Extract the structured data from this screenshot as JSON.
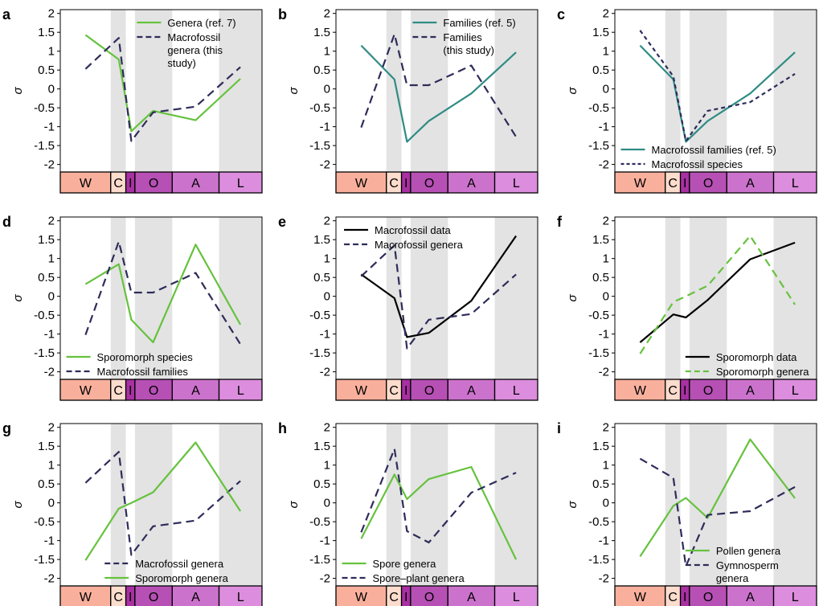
{
  "figure": {
    "axis_symbol": "σ",
    "colors": {
      "green": "#66c23e",
      "navy": "#2e2c5a",
      "teal": "#2f8c84",
      "black": "#000000",
      "shade": "#e3e3e3",
      "period_W": "#f8b09d",
      "period_C": "#fcdccd",
      "period_I": "#a830a2",
      "period_O": "#b650b4",
      "period_A": "#cb73cc",
      "period_L": "#dc8ddd"
    },
    "period_labels": [
      "W",
      "C",
      "I",
      "O",
      "A",
      "L"
    ]
  },
  "chart_data": [
    {
      "panel": "a",
      "type": "line",
      "ylim": [
        -2.2,
        2.1
      ],
      "yticks": [
        2.0,
        1.5,
        1.0,
        0.5,
        0.0,
        -0.5,
        -1.0,
        -1.5,
        -2.0
      ],
      "ylabel": "σ",
      "x_stages": [
        "W",
        "C",
        "I",
        "O",
        "A",
        "L"
      ],
      "legend_position": "top-right",
      "series": [
        {
          "name": "Genera (ref. 7)",
          "color": "#66c23e",
          "dash": "solid",
          "width": 2.2,
          "values": [
            1.43,
            0.78,
            -1.12,
            -0.58,
            -0.83,
            0.27
          ]
        },
        {
          "name": "Macrofossil genera (this study)",
          "legend_lines": [
            "Macrofossil",
            "genera (this",
            "study)"
          ],
          "color": "#2e2c5a",
          "dash": "long",
          "width": 2.2,
          "values": [
            0.53,
            1.35,
            -1.38,
            -0.62,
            -0.47,
            0.58
          ]
        }
      ]
    },
    {
      "panel": "b",
      "type": "line",
      "ylim": [
        -2.2,
        2.1
      ],
      "yticks": [
        2.0,
        1.5,
        1.0,
        0.5,
        0.0,
        -0.5,
        -1.0,
        -1.5,
        -2.0
      ],
      "ylabel": "σ",
      "x_stages": [
        "W",
        "C",
        "I",
        "O",
        "A",
        "L"
      ],
      "legend_position": "top-right",
      "series": [
        {
          "name": "Families (ref. 5)",
          "color": "#2f8c84",
          "dash": "solid",
          "width": 2.2,
          "values": [
            1.15,
            0.25,
            -1.4,
            -0.85,
            -0.12,
            0.97
          ]
        },
        {
          "name": "Families (this study)",
          "legend_lines": [
            "Families",
            "(this study)"
          ],
          "color": "#2e2c5a",
          "dash": "long",
          "width": 2.2,
          "values": [
            -1.02,
            1.45,
            0.1,
            0.1,
            0.62,
            -1.27
          ]
        }
      ]
    },
    {
      "panel": "c",
      "type": "line",
      "ylim": [
        -2.2,
        2.1
      ],
      "yticks": [
        2.0,
        1.5,
        1.0,
        0.5,
        0.0,
        -0.5,
        -1.0,
        -1.5,
        -2.0
      ],
      "ylabel": "σ",
      "x_stages": [
        "W",
        "C",
        "I",
        "O",
        "A",
        "L"
      ],
      "legend_position": "bottom-left",
      "series": [
        {
          "name": "Macrofossil families (ref. 5)",
          "color": "#2f8c84",
          "dash": "solid",
          "width": 2.2,
          "values": [
            1.15,
            0.25,
            -1.4,
            -0.85,
            -0.12,
            0.97
          ]
        },
        {
          "name": "Macrofossil species",
          "color": "#2e2c5a",
          "dash": "short",
          "width": 2.2,
          "values": [
            1.55,
            0.33,
            -1.38,
            -0.58,
            -0.35,
            0.4
          ]
        }
      ]
    },
    {
      "panel": "d",
      "type": "line",
      "ylim": [
        -2.2,
        2.1
      ],
      "yticks": [
        2.0,
        1.5,
        1.0,
        0.5,
        0.0,
        -0.5,
        -1.0,
        -1.5,
        -2.0
      ],
      "ylabel": "σ",
      "x_stages": [
        "W",
        "C",
        "I",
        "O",
        "A",
        "L"
      ],
      "legend_position": "bottom-left",
      "series": [
        {
          "name": "Sporomorph species",
          "color": "#66c23e",
          "dash": "solid",
          "width": 2.2,
          "values": [
            0.32,
            0.85,
            -0.62,
            -1.22,
            1.37,
            -0.75
          ]
        },
        {
          "name": "Macrofossil families",
          "color": "#2e2c5a",
          "dash": "long",
          "width": 2.2,
          "values": [
            -1.02,
            1.45,
            0.1,
            0.1,
            0.62,
            -1.27
          ]
        }
      ]
    },
    {
      "panel": "e",
      "type": "line",
      "ylim": [
        -2.2,
        2.1
      ],
      "yticks": [
        2.0,
        1.5,
        1.0,
        0.5,
        0.0,
        -0.5,
        -1.0,
        -1.5,
        -2.0
      ],
      "ylabel": "",
      "x_stages": [
        "W",
        "C",
        "I",
        "O",
        "A",
        "L"
      ],
      "legend_position": "top-left",
      "series": [
        {
          "name": "Macrofossil data",
          "color": "#000000",
          "dash": "solid",
          "width": 2.2,
          "values": [
            0.58,
            -0.05,
            -1.08,
            -0.97,
            -0.12,
            1.6
          ]
        },
        {
          "name": "Macrofossil genera",
          "color": "#2e2c5a",
          "dash": "long",
          "width": 2.2,
          "values": [
            0.53,
            1.35,
            -1.38,
            -0.62,
            -0.47,
            0.58
          ]
        }
      ]
    },
    {
      "panel": "f",
      "type": "line",
      "ylim": [
        -2.2,
        2.1
      ],
      "yticks": [
        2.0,
        1.5,
        1.0,
        0.5,
        0.0,
        -0.5,
        -1.0,
        -1.5,
        -2.0
      ],
      "ylabel": "σ",
      "x_stages": [
        "W",
        "C",
        "I",
        "O",
        "A",
        "L"
      ],
      "legend_position": "bottom-right",
      "series": [
        {
          "name": "Sporomorph data",
          "color": "#000000",
          "dash": "solid",
          "width": 2.2,
          "values": [
            -1.22,
            -0.48,
            -0.56,
            -0.1,
            0.98,
            1.42
          ]
        },
        {
          "name": "Sporomorph genera",
          "color": "#66c23e",
          "dash": "long",
          "width": 2.2,
          "values": [
            -1.52,
            -0.15,
            0.0,
            0.28,
            1.6,
            -0.22
          ]
        }
      ]
    },
    {
      "panel": "g",
      "type": "line",
      "ylim": [
        -2.2,
        2.1
      ],
      "yticks": [
        2.0,
        1.5,
        1.0,
        0.5,
        0.0,
        -0.5,
        -1.0,
        -1.5,
        -2.0
      ],
      "ylabel": "σ",
      "x_stages": [
        "W",
        "C",
        "I",
        "O",
        "A",
        "L"
      ],
      "legend_position": "bottom-center",
      "series": [
        {
          "name": "Macrofossil genera",
          "color": "#2e2c5a",
          "dash": "long",
          "width": 2.2,
          "values": [
            0.53,
            1.35,
            -1.38,
            -0.62,
            -0.47,
            0.58
          ]
        },
        {
          "name": "Sporomorph genera",
          "color": "#66c23e",
          "dash": "solid",
          "width": 2.2,
          "values": [
            -1.52,
            -0.15,
            0.0,
            0.28,
            1.6,
            -0.22
          ]
        }
      ]
    },
    {
      "panel": "h",
      "type": "line",
      "ylim": [
        -2.2,
        2.1
      ],
      "yticks": [
        2.0,
        1.5,
        1.0,
        0.5,
        0.0,
        -0.5,
        -1.0,
        -1.5,
        -2.0
      ],
      "ylabel": "σ",
      "x_stages": [
        "W",
        "C",
        "I",
        "O",
        "A",
        "L"
      ],
      "legend_position": "bottom-left",
      "series": [
        {
          "name": "Spore genera",
          "color": "#66c23e",
          "dash": "solid",
          "width": 2.2,
          "values": [
            -0.95,
            0.75,
            0.1,
            0.63,
            0.95,
            -1.5
          ]
        },
        {
          "name": "Spore–plant genera",
          "color": "#2e2c5a",
          "dash": "long",
          "width": 2.2,
          "values": [
            -0.78,
            1.43,
            -0.75,
            -1.05,
            0.27,
            0.8
          ]
        }
      ]
    },
    {
      "panel": "i",
      "type": "line",
      "ylim": [
        -2.2,
        2.1
      ],
      "yticks": [
        2.0,
        1.5,
        1.0,
        0.5,
        0.0,
        -0.5,
        -1.0,
        -1.5,
        -2.0
      ],
      "ylabel": "σ",
      "x_stages": [
        "W",
        "C",
        "I",
        "O",
        "A",
        "L"
      ],
      "legend_position": "bottom-right",
      "series": [
        {
          "name": "Pollen genera",
          "color": "#66c23e",
          "dash": "solid",
          "width": 2.2,
          "values": [
            -1.42,
            -0.08,
            0.13,
            -0.4,
            1.68,
            0.12
          ]
        },
        {
          "name": "Gymnosperm genera",
          "legend_lines": [
            "Gymnosperm",
            "genera"
          ],
          "color": "#2e2c5a",
          "dash": "long",
          "width": 2.2,
          "values": [
            1.17,
            0.66,
            -1.68,
            -0.32,
            -0.22,
            0.42
          ]
        }
      ]
    }
  ]
}
